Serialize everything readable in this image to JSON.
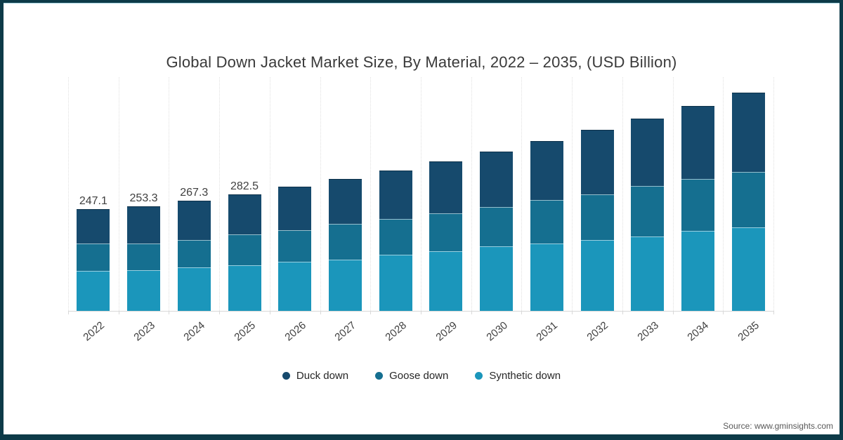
{
  "title": "Global Down Jacket Market Size, By Material, 2022 – 2035, (USD Billion)",
  "source": "Source: www.gminsights.com",
  "colors": {
    "duck_down": "#164a6d",
    "goose_down": "#156f90",
    "synthetic_down": "#1b96bb",
    "frame": "#0d3a48",
    "axis": "#d9d9d9"
  },
  "chart_data": {
    "type": "bar",
    "stacked": true,
    "title": "Global Down Jacket Market Size, By Material, 2022 – 2035, (USD Billion)",
    "xlabel": "",
    "ylabel": "USD Billion",
    "legend_position": "bottom",
    "grid": "vertical-dotted",
    "categories": [
      "2022",
      "2023",
      "2024",
      "2025",
      "2026",
      "2027",
      "2028",
      "2029",
      "2030",
      "2031",
      "2032",
      "2033",
      "2034",
      "2035"
    ],
    "series": [
      {
        "name": "Duck down",
        "color": "#164a6d",
        "values": [
          84.0,
          89.0,
          95.0,
          97.5,
          104.7,
          109.3,
          118.3,
          126.3,
          134.3,
          143.8,
          156.9,
          164.9,
          177.8,
          192.1
        ]
      },
      {
        "name": "Goose down",
        "color": "#156f90",
        "values": [
          65.6,
          64.9,
          66.3,
          74.3,
          76.5,
          86.2,
          86.2,
          91.8,
          96.4,
          105.4,
          110.5,
          121.7,
          125.8,
          136.0
        ]
      },
      {
        "name": "Synthetic down",
        "color": "#1b96bb",
        "values": [
          97.5,
          99.4,
          106.0,
          110.7,
          119.7,
          124.9,
          136.7,
          145.3,
          156.3,
          163.0,
          171.6,
          180.9,
          194.3,
          202.1
        ]
      }
    ],
    "totals": [
      247.1,
      253.3,
      267.3,
      282.5,
      300.9,
      320.4,
      341.2,
      363.4,
      387.0,
      412.2,
      439.0,
      467.5,
      497.9,
      530.2
    ],
    "total_labels": [
      "247.1",
      "253.3",
      "267.3",
      "282.5",
      "",
      "",
      "",
      "",
      "",
      "",
      "",
      "",
      "",
      ""
    ]
  }
}
